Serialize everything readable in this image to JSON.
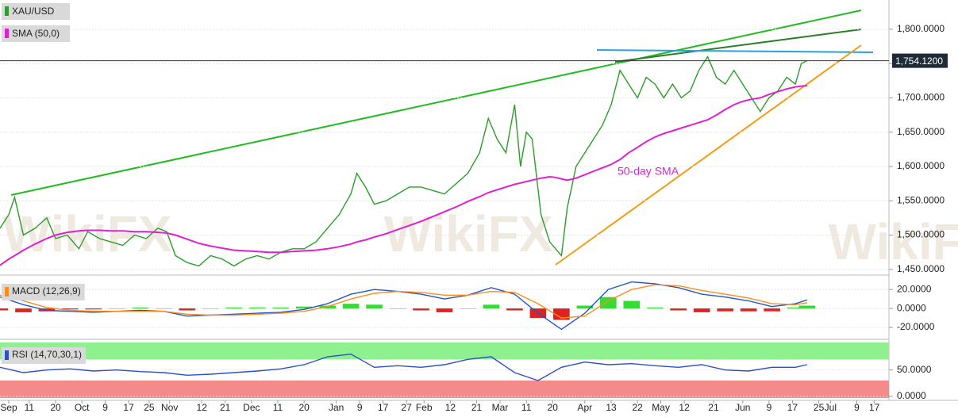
{
  "watermark": "WikiFX",
  "chart_data": [
    {
      "type": "line",
      "title": "XAU/USD",
      "annotation": "50-day SMA",
      "xlim": [
        0,
        304
      ],
      "ylim": [
        1444,
        1838
      ],
      "yticks": [
        {
          "value": 1450,
          "label": "1,450.0000"
        },
        {
          "value": 1500,
          "label": "1,500.0000"
        },
        {
          "value": 1550,
          "label": "1,550.0000"
        },
        {
          "value": 1600,
          "label": "1,600.0000"
        },
        {
          "value": 1650,
          "label": "1,650.0000"
        },
        {
          "value": 1700,
          "label": "1,700.0000"
        },
        {
          "value": 1750,
          "label": "1,750.0000"
        },
        {
          "value": 1800,
          "label": "1,800.0000"
        }
      ],
      "grid": true,
      "last_price": {
        "value": 1754.12,
        "label": "1,754.1200"
      },
      "x": [
        0,
        3,
        5,
        8,
        12,
        16,
        19,
        23,
        27,
        30,
        34,
        38,
        42,
        46,
        50,
        54,
        57,
        60,
        64,
        68,
        72,
        76,
        80,
        84,
        88,
        92,
        96,
        100,
        104,
        108,
        112,
        116,
        120,
        122,
        125,
        128,
        132,
        136,
        140,
        144,
        148,
        152,
        156,
        160,
        164,
        167,
        170,
        173,
        176,
        178,
        180,
        182,
        185,
        188,
        190,
        192,
        194,
        197,
        200,
        203,
        206,
        209,
        212,
        215,
        218,
        221,
        224,
        227,
        230,
        233,
        236,
        239,
        242,
        245,
        248,
        251,
        254,
        257,
        260,
        263,
        266,
        269,
        272,
        274,
        276
      ],
      "series": [
        {
          "name": "XAU/USD",
          "color": "#2a9d2a",
          "values": [
            1510,
            1530,
            1555,
            1500,
            1510,
            1525,
            1495,
            1500,
            1480,
            1505,
            1495,
            1490,
            1485,
            1500,
            1495,
            1510,
            1505,
            1470,
            1460,
            1455,
            1470,
            1465,
            1455,
            1465,
            1470,
            1465,
            1475,
            1480,
            1480,
            1490,
            1510,
            1530,
            1560,
            1590,
            1570,
            1545,
            1550,
            1560,
            1570,
            1570,
            1565,
            1560,
            1575,
            1590,
            1620,
            1670,
            1640,
            1620,
            1690,
            1600,
            1650,
            1640,
            1530,
            1490,
            1480,
            1470,
            1540,
            1600,
            1620,
            1640,
            1660,
            1690,
            1740,
            1720,
            1700,
            1730,
            1720,
            1700,
            1720,
            1700,
            1710,
            1740,
            1760,
            1730,
            1720,
            1740,
            1720,
            1700,
            1680,
            1700,
            1710,
            1730,
            1720,
            1750,
            1754.12
          ]
        },
        {
          "name": "SMA (50,0)",
          "color": "#e020d0",
          "values": [
            1456,
            1465,
            1470,
            1478,
            1487,
            1495,
            1500,
            1504,
            1506,
            1507,
            1507,
            1506,
            1506,
            1505,
            1505,
            1504,
            1503,
            1500,
            1494,
            1488,
            1484,
            1481,
            1478,
            1477,
            1476,
            1475,
            1475,
            1476,
            1477,
            1478,
            1480,
            1483,
            1487,
            1490,
            1493,
            1497,
            1502,
            1508,
            1514,
            1520,
            1527,
            1534,
            1541,
            1549,
            1556,
            1562,
            1566,
            1570,
            1574,
            1576,
            1578,
            1580,
            1583,
            1585,
            1584,
            1582,
            1580,
            1583,
            1588,
            1593,
            1598,
            1603,
            1610,
            1620,
            1628,
            1636,
            1643,
            1648,
            1652,
            1656,
            1660,
            1664,
            1668,
            1675,
            1683,
            1690,
            1695,
            1698,
            1700,
            1705,
            1709,
            1713,
            1716,
            1717,
            1718
          ]
        }
      ]
    },
    {
      "type": "line",
      "title": "MACD (12,26,9)",
      "xlim": [
        0,
        304
      ],
      "ylim": [
        -30,
        31
      ],
      "yticks": [
        {
          "value": -20,
          "label": "-20.0000"
        },
        {
          "value": 0,
          "label": "0.0000"
        },
        {
          "value": 20,
          "label": "20.0000"
        }
      ],
      "x": [
        0,
        8,
        16,
        24,
        32,
        40,
        48,
        56,
        64,
        72,
        80,
        88,
        96,
        104,
        112,
        120,
        128,
        136,
        144,
        152,
        160,
        168,
        176,
        184,
        192,
        200,
        208,
        216,
        224,
        232,
        240,
        248,
        256,
        264,
        272,
        276
      ],
      "series": [
        {
          "kind": "bar",
          "color": "#33dd33",
          "negative_color": "#dd2222",
          "values": [
            -2,
            -4,
            -3,
            -1,
            -1,
            0,
            1,
            0,
            -2,
            0,
            1,
            1,
            1,
            2,
            3,
            5,
            4,
            0,
            -2,
            -4,
            0,
            4,
            -2,
            -10,
            -12,
            3,
            12,
            8,
            1,
            -2,
            -4,
            -3,
            -3,
            -3,
            1,
            3
          ]
        },
        {
          "kind": "line",
          "color": "#2255cc",
          "values": [
            12,
            4,
            -2,
            -3,
            -4,
            -3,
            -2,
            -3,
            -8,
            -7,
            -6,
            -5,
            -4,
            -1,
            5,
            15,
            20,
            18,
            15,
            10,
            14,
            22,
            15,
            -5,
            -22,
            -5,
            20,
            28,
            26,
            22,
            15,
            12,
            8,
            2,
            5,
            9
          ]
        },
        {
          "kind": "line",
          "color": "#ff8c1a",
          "values": [
            14,
            8,
            1,
            -2,
            -3,
            -3,
            -3,
            -3,
            -6,
            -7,
            -7,
            -6,
            -5,
            -3,
            2,
            10,
            16,
            18,
            17,
            14,
            14,
            18,
            17,
            5,
            -10,
            -8,
            8,
            20,
            25,
            24,
            19,
            15,
            11,
            5,
            4,
            6
          ]
        }
      ]
    },
    {
      "type": "line",
      "title": "RSI (14,70,30,1)",
      "xlim": [
        0,
        304
      ],
      "ylim": [
        -3,
        102
      ],
      "yticks": [
        {
          "value": 0,
          "label": "0.0000"
        },
        {
          "value": 50,
          "label": "50.0000"
        }
      ],
      "bands": [
        {
          "from": 70,
          "to": 102,
          "color": "#8ef08e"
        },
        {
          "from": -3,
          "to": 30,
          "color": "#f58a8a"
        }
      ],
      "x": [
        0,
        8,
        16,
        24,
        32,
        40,
        48,
        56,
        64,
        72,
        80,
        88,
        96,
        104,
        112,
        120,
        128,
        136,
        144,
        152,
        160,
        168,
        176,
        184,
        192,
        200,
        208,
        216,
        224,
        232,
        240,
        248,
        256,
        264,
        272,
        276
      ],
      "series": [
        {
          "kind": "line",
          "color": "#2a50c8",
          "values": [
            55,
            45,
            50,
            52,
            48,
            50,
            47,
            45,
            40,
            42,
            45,
            48,
            52,
            60,
            75,
            80,
            55,
            58,
            55,
            60,
            70,
            75,
            45,
            30,
            55,
            65,
            60,
            62,
            58,
            55,
            60,
            50,
            48,
            55,
            55,
            60
          ]
        }
      ],
      "xticks": [
        {
          "value": 3,
          "label": "Sep"
        },
        {
          "value": 10,
          "label": "11"
        },
        {
          "value": 19,
          "label": "20"
        },
        {
          "value": 28,
          "label": "Oct"
        },
        {
          "value": 36,
          "label": "9"
        },
        {
          "value": 44,
          "label": "17"
        },
        {
          "value": 51,
          "label": "25"
        },
        {
          "value": 58,
          "label": "Nov"
        },
        {
          "value": 69,
          "label": "12"
        },
        {
          "value": 77,
          "label": "21"
        },
        {
          "value": 86,
          "label": "Dec"
        },
        {
          "value": 95,
          "label": "11"
        },
        {
          "value": 104,
          "label": "20"
        },
        {
          "value": 115,
          "label": "Jan"
        },
        {
          "value": 123,
          "label": "9"
        },
        {
          "value": 131,
          "label": "17"
        },
        {
          "value": 139,
          "label": "27"
        },
        {
          "value": 145,
          "label": "Feb"
        },
        {
          "value": 154,
          "label": "12"
        },
        {
          "value": 163,
          "label": "21"
        },
        {
          "value": 171,
          "label": "Mar"
        },
        {
          "value": 180,
          "label": "11"
        },
        {
          "value": 189,
          "label": "20"
        },
        {
          "value": 200,
          "label": "Apr"
        },
        {
          "value": 209,
          "label": "13"
        },
        {
          "value": 218,
          "label": "22"
        },
        {
          "value": 226,
          "label": "May"
        },
        {
          "value": 234,
          "label": "12"
        },
        {
          "value": 244,
          "label": "21"
        },
        {
          "value": 254,
          "label": "Jun"
        },
        {
          "value": 263,
          "label": "9"
        },
        {
          "value": 271,
          "label": "17"
        },
        {
          "value": 280,
          "label": "25"
        },
        {
          "value": 284,
          "label": "Jul"
        },
        {
          "value": 293,
          "label": "9"
        },
        {
          "value": 299,
          "label": "17"
        }
      ]
    }
  ]
}
